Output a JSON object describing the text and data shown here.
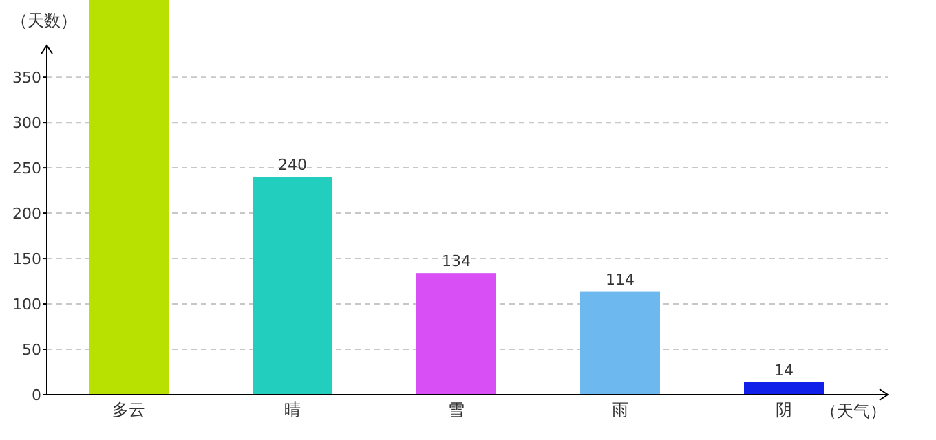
{
  "chart_data": {
    "type": "bar",
    "xlabel": "（天气）",
    "ylabel": "（天数）",
    "categories": [
      "多云",
      "晴",
      "雪",
      "雨",
      "阴"
    ],
    "values": [
      435,
      240,
      134,
      114,
      14
    ],
    "value_labels": [
      null,
      "240",
      "134",
      "114",
      "14"
    ],
    "colors": [
      "#b8e000",
      "#22cfbf",
      "#d84ff5",
      "#6cb8ef",
      "#1020e8"
    ],
    "ylim": [
      0,
      435
    ],
    "yticks": [
      0,
      50,
      100,
      150,
      200,
      250,
      300,
      350
    ],
    "grid": "y"
  }
}
